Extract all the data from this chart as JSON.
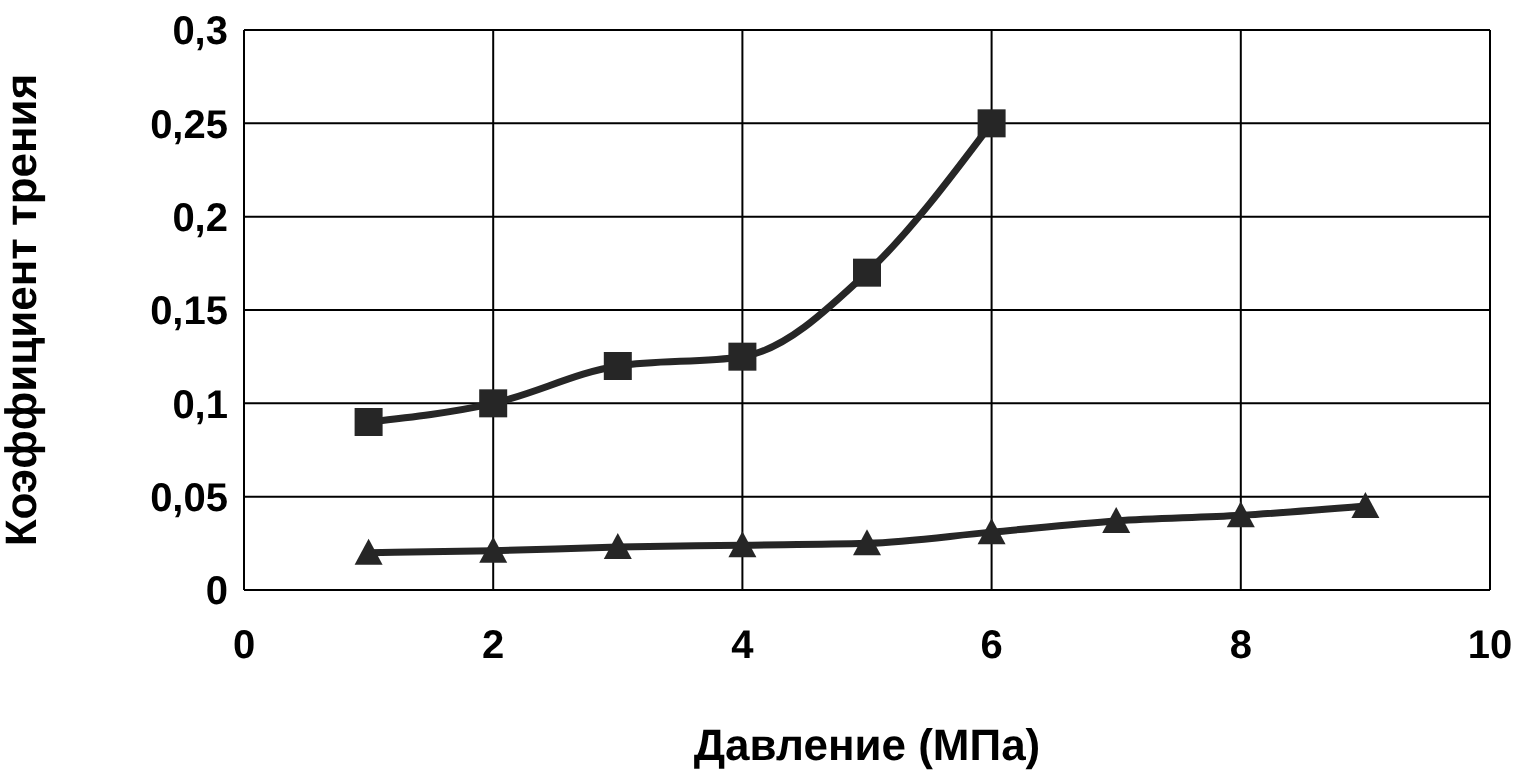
{
  "chart_data": {
    "type": "line",
    "xlabel": "Давление (МПа)",
    "ylabel": "Коэффициент трения",
    "xlim": [
      0,
      10
    ],
    "xticks": [
      0,
      2,
      4,
      6,
      8,
      10
    ],
    "ylim": [
      0,
      0.3
    ],
    "yticks": [
      0,
      {
        "value": 0.05,
        "label": "0,05"
      },
      {
        "value": 0.1,
        "label": "0,1"
      },
      {
        "value": 0.15,
        "label": "0,15"
      },
      {
        "value": 0.2,
        "label": "0,2"
      },
      {
        "value": 0.25,
        "label": "0,25"
      },
      {
        "value": 0.3,
        "label": "0,3"
      }
    ],
    "grid": true,
    "series": [
      {
        "color": "#262626",
        "marker": "square",
        "x": [
          1,
          2,
          3,
          4,
          5,
          6
        ],
        "values": [
          0.09,
          0.1,
          0.12,
          0.125,
          0.17,
          0.25
        ]
      },
      {
        "color": "#262626",
        "marker": "triangle",
        "x": [
          1,
          2,
          3,
          4,
          5,
          6,
          7,
          8,
          9
        ],
        "values": [
          0.02,
          0.021,
          0.023,
          0.024,
          0.025,
          0.031,
          0.037,
          0.04,
          0.045
        ]
      }
    ]
  }
}
